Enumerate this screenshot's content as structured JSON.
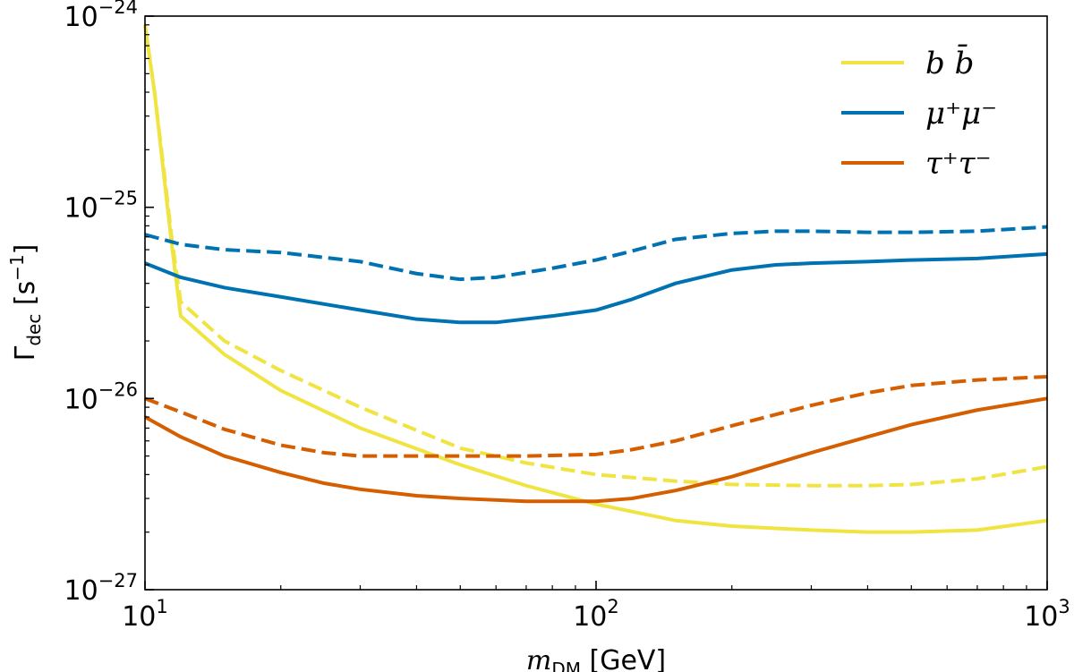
{
  "chart_data": {
    "type": "line",
    "xscale": "log",
    "yscale": "log",
    "xlim": [
      10,
      1000
    ],
    "ylim": [
      1e-27,
      1e-24
    ],
    "xlabel": "m_DM [GeV]",
    "ylabel": "Γ_dec [s⁻¹]",
    "xticks": [
      {
        "value": 10,
        "base": "10",
        "exp": "1"
      },
      {
        "value": 100,
        "base": "10",
        "exp": "2"
      },
      {
        "value": 1000,
        "base": "10",
        "exp": "3"
      }
    ],
    "yticks": [
      {
        "value": 1e-27,
        "base": "10",
        "exp": "−27"
      },
      {
        "value": 1e-26,
        "base": "10",
        "exp": "−26"
      },
      {
        "value": 1e-25,
        "base": "10",
        "exp": "−25"
      },
      {
        "value": 1e-24,
        "base": "10",
        "exp": "−24"
      }
    ],
    "grid": false,
    "legend_position": "top-right",
    "legend": [
      {
        "label": "b b̄",
        "color": "#f0e442"
      },
      {
        "label": "μ⁺μ⁻",
        "color": "#0072b2"
      },
      {
        "label": "τ⁺τ⁻",
        "color": "#d55e00"
      }
    ],
    "series": [
      {
        "name": "b b̄",
        "color": "#f0e442",
        "style": "solid",
        "x": [
          10,
          10.5,
          11,
          11.5,
          12,
          15,
          20,
          30,
          50,
          70,
          100,
          150,
          200,
          300,
          400,
          500,
          700,
          1000
        ],
        "y": [
          9e-25,
          4e-25,
          1.5e-25,
          6e-26,
          2.7e-26,
          1.7e-26,
          1.1e-26,
          7e-27,
          4.5e-27,
          3.5e-27,
          2.8e-27,
          2.3e-27,
          2.15e-27,
          2.05e-27,
          2e-27,
          2e-27,
          2.05e-27,
          2.3e-27
        ]
      },
      {
        "name": "b b̄",
        "color": "#f0e442",
        "style": "dashed",
        "x": [
          10,
          10.5,
          11,
          11.5,
          12,
          15,
          20,
          30,
          50,
          70,
          100,
          150,
          200,
          300,
          400,
          500,
          700,
          1000
        ],
        "y": [
          9e-25,
          4e-25,
          1.6e-25,
          6.5e-26,
          3.2e-26,
          2e-26,
          1.4e-26,
          9e-27,
          5.5e-27,
          4.6e-27,
          4e-27,
          3.7e-27,
          3.55e-27,
          3.5e-27,
          3.5e-27,
          3.55e-27,
          3.8e-27,
          4.4e-27
        ]
      },
      {
        "name": "μ⁺μ⁻",
        "color": "#0072b2",
        "style": "solid",
        "x": [
          10,
          12,
          15,
          20,
          30,
          40,
          50,
          60,
          80,
          100,
          120,
          150,
          200,
          250,
          300,
          400,
          500,
          700,
          1000
        ],
        "y": [
          5.1e-26,
          4.3e-26,
          3.8e-26,
          3.4e-26,
          2.9e-26,
          2.6e-26,
          2.5e-26,
          2.5e-26,
          2.7e-26,
          2.9e-26,
          3.3e-26,
          4e-26,
          4.7e-26,
          5e-26,
          5.1e-26,
          5.2e-26,
          5.3e-26,
          5.4e-26,
          5.7e-26
        ]
      },
      {
        "name": "μ⁺μ⁻",
        "color": "#0072b2",
        "style": "dashed",
        "x": [
          10,
          12,
          15,
          20,
          30,
          40,
          50,
          60,
          80,
          100,
          120,
          150,
          200,
          250,
          300,
          400,
          500,
          700,
          1000
        ],
        "y": [
          7.2e-26,
          6.4e-26,
          6e-26,
          5.8e-26,
          5.2e-26,
          4.5e-26,
          4.2e-26,
          4.3e-26,
          4.8e-26,
          5.3e-26,
          5.9e-26,
          6.8e-26,
          7.3e-26,
          7.5e-26,
          7.5e-26,
          7.4e-26,
          7.4e-26,
          7.5e-26,
          7.9e-26
        ]
      },
      {
        "name": "τ⁺τ⁻",
        "color": "#d55e00",
        "style": "solid",
        "x": [
          10,
          12,
          15,
          20,
          25,
          30,
          40,
          50,
          70,
          100,
          120,
          150,
          200,
          300,
          400,
          500,
          700,
          1000
        ],
        "y": [
          8e-27,
          6.3e-27,
          5e-27,
          4.1e-27,
          3.6e-27,
          3.35e-27,
          3.1e-27,
          3e-27,
          2.9e-27,
          2.9e-27,
          3e-27,
          3.3e-27,
          3.9e-27,
          5.2e-27,
          6.3e-27,
          7.3e-27,
          8.7e-27,
          1e-26
        ]
      },
      {
        "name": "τ⁺τ⁻",
        "color": "#d55e00",
        "style": "dashed",
        "x": [
          10,
          12,
          15,
          20,
          25,
          30,
          40,
          50,
          70,
          100,
          120,
          150,
          200,
          300,
          400,
          500,
          700,
          1000
        ],
        "y": [
          1e-26,
          8.5e-27,
          6.9e-27,
          5.7e-27,
          5.2e-27,
          5e-27,
          5e-27,
          5e-27,
          5e-27,
          5.1e-27,
          5.4e-27,
          6e-27,
          7.2e-27,
          9.2e-27,
          1.07e-26,
          1.17e-26,
          1.25e-26,
          1.3e-26
        ]
      }
    ]
  }
}
